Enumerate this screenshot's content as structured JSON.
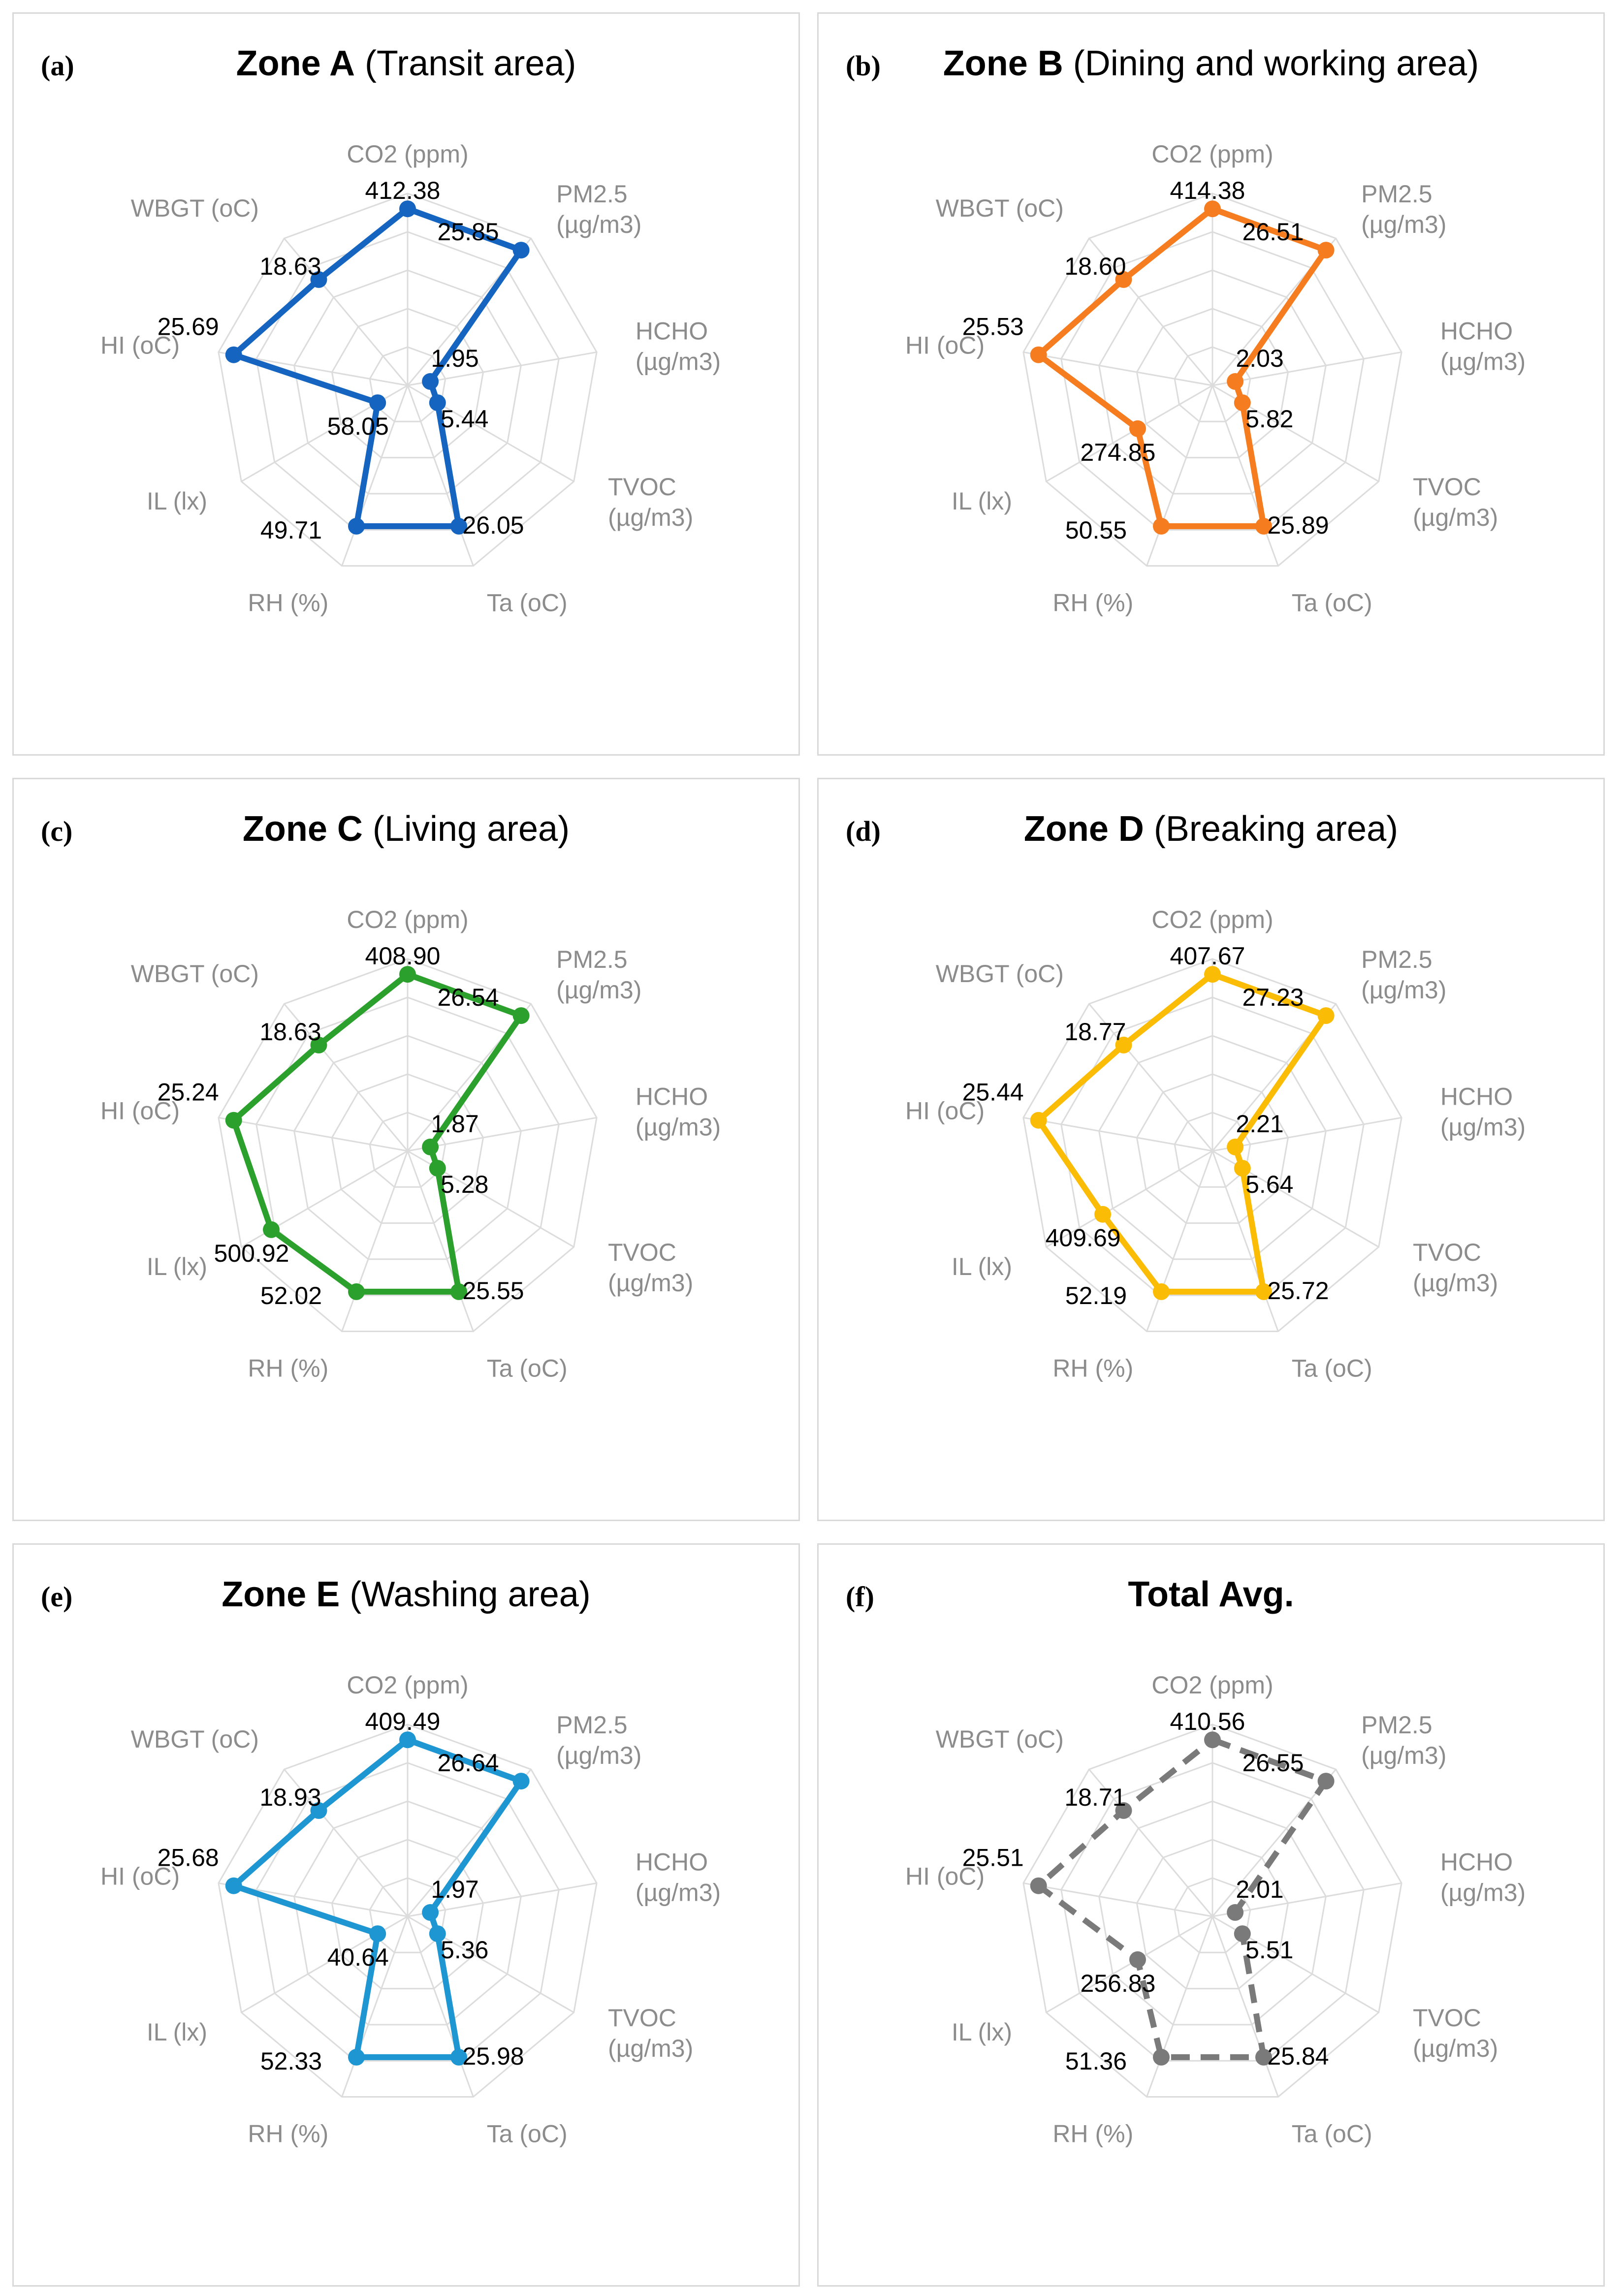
{
  "chart_data": [
    {
      "type": "radar",
      "label": "(a)",
      "title_bold": "Zone A",
      "title_rest": " (Transit area)",
      "color": "#1565c0",
      "line_style": "solid",
      "axes": [
        "CO2 (ppm)",
        "PM2.5 (µg/m3)",
        "HCHO (µg/m3)",
        "TVOC (µg/m3)",
        "Ta (oC)",
        "RH (%)",
        "IL (lx)",
        "HI (oC)",
        "WBGT (oC)"
      ],
      "value_labels": [
        "412.38",
        "25.85",
        "1.95",
        "5.44",
        "26.05",
        "49.71",
        "58.05",
        "25.69",
        "18.63"
      ],
      "normalized_values": [
        0.92,
        0.92,
        0.12,
        0.18,
        0.78,
        0.78,
        0.18,
        0.92,
        0.72
      ]
    },
    {
      "type": "radar",
      "label": "(b)",
      "title_bold": "Zone B",
      "title_rest": " (Dining and working area)",
      "color": "#f57c1f",
      "line_style": "solid",
      "axes": [
        "CO2 (ppm)",
        "PM2.5 (µg/m3)",
        "HCHO (µg/m3)",
        "TVOC (µg/m3)",
        "Ta (oC)",
        "RH (%)",
        "IL (lx)",
        "HI (oC)",
        "WBGT (oC)"
      ],
      "value_labels": [
        "414.38",
        "26.51",
        "2.03",
        "5.82",
        "25.89",
        "50.55",
        "274.85",
        "25.53",
        "18.60"
      ],
      "normalized_values": [
        0.92,
        0.92,
        0.12,
        0.18,
        0.78,
        0.78,
        0.45,
        0.92,
        0.72
      ]
    },
    {
      "type": "radar",
      "label": "(c)",
      "title_bold": "Zone C",
      "title_rest": " (Living area)",
      "color": "#2ca02c",
      "line_style": "solid",
      "axes": [
        "CO2 (ppm)",
        "PM2.5 (µg/m3)",
        "HCHO (µg/m3)",
        "TVOC (µg/m3)",
        "Ta (oC)",
        "RH (%)",
        "IL (lx)",
        "HI (oC)",
        "WBGT (oC)"
      ],
      "value_labels": [
        "408.90",
        "26.54",
        "1.87",
        "5.28",
        "25.55",
        "52.02",
        "500.92",
        "25.24",
        "18.63"
      ],
      "normalized_values": [
        0.92,
        0.92,
        0.12,
        0.18,
        0.78,
        0.78,
        0.82,
        0.92,
        0.72
      ]
    },
    {
      "type": "radar",
      "label": "(d)",
      "title_bold": "Zone D",
      "title_rest": " (Breaking area)",
      "color": "#fbbc05",
      "line_style": "solid",
      "axes": [
        "CO2 (ppm)",
        "PM2.5 (µg/m3)",
        "HCHO (µg/m3)",
        "TVOC (µg/m3)",
        "Ta (oC)",
        "RH (%)",
        "IL (lx)",
        "HI (oC)",
        "WBGT (oC)"
      ],
      "value_labels": [
        "407.67",
        "27.23",
        "2.21",
        "5.64",
        "25.72",
        "52.19",
        "409.69",
        "25.44",
        "18.77"
      ],
      "normalized_values": [
        0.92,
        0.92,
        0.12,
        0.18,
        0.78,
        0.78,
        0.66,
        0.92,
        0.72
      ]
    },
    {
      "type": "radar",
      "label": "(e)",
      "title_bold": "Zone E",
      "title_rest": " (Washing area)",
      "color": "#1e96d2",
      "line_style": "solid",
      "axes": [
        "CO2 (ppm)",
        "PM2.5 (µg/m3)",
        "HCHO (µg/m3)",
        "TVOC (µg/m3)",
        "Ta (oC)",
        "RH (%)",
        "IL (lx)",
        "HI (oC)",
        "WBGT (oC)"
      ],
      "value_labels": [
        "409.49",
        "26.64",
        "1.97",
        "5.36",
        "25.98",
        "52.33",
        "40.64",
        "25.68",
        "18.93"
      ],
      "normalized_values": [
        0.92,
        0.92,
        0.12,
        0.18,
        0.78,
        0.78,
        0.18,
        0.92,
        0.72
      ]
    },
    {
      "type": "radar",
      "label": "(f)",
      "title_bold": "Total Avg.",
      "title_rest": "",
      "color": "#7a7a7a",
      "line_style": "dashed",
      "axes": [
        "CO2 (ppm)",
        "PM2.5 (µg/m3)",
        "HCHO (µg/m3)",
        "TVOC (µg/m3)",
        "Ta (oC)",
        "RH (%)",
        "IL (lx)",
        "HI (oC)",
        "WBGT (oC)"
      ],
      "value_labels": [
        "410.56",
        "26.55",
        "2.01",
        "5.51",
        "25.84",
        "51.36",
        "256.83",
        "25.51",
        "18.71"
      ],
      "normalized_values": [
        0.92,
        0.92,
        0.12,
        0.18,
        0.78,
        0.78,
        0.45,
        0.92,
        0.72
      ]
    }
  ]
}
